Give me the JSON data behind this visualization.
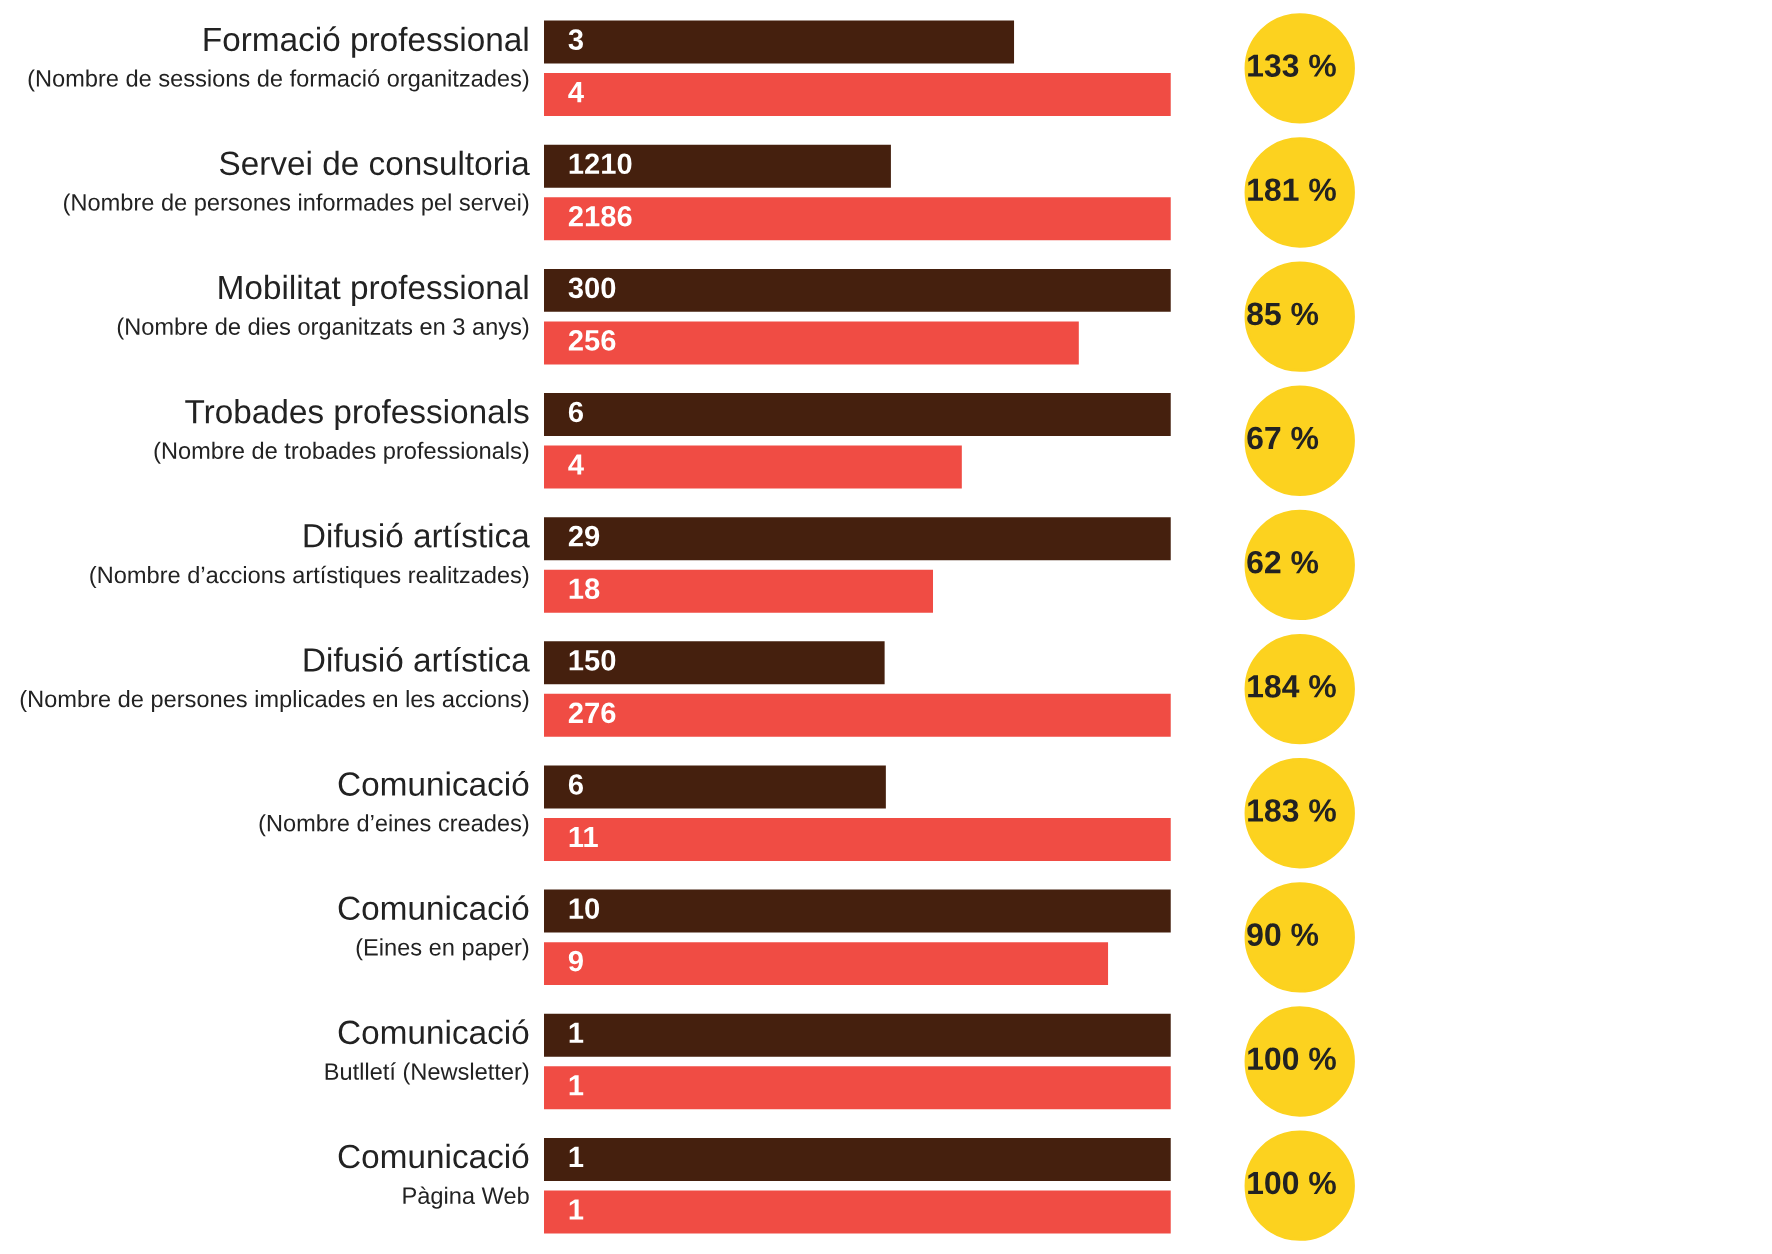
{
  "chart_data": [
    {
      "type": "bar",
      "orientation": "horizontal",
      "categories": [
        "Formació professional\n(Nombre de sessions de formació organitzades)"
      ],
      "series": [
        {
          "color": "#45200e",
          "values": [
            3
          ]
        },
        {
          "color": "#f04c44",
          "values": [
            4
          ]
        }
      ],
      "tick_labels": false,
      "data_labels": true,
      "annotations": [
        "133 %"
      ]
    },
    {
      "type": "bar",
      "orientation": "horizontal",
      "categories": [
        "Servei de consultoria\n(Nombre de persones informades pel servei)"
      ],
      "series": [
        {
          "color": "#45200e",
          "values": [
            1210
          ]
        },
        {
          "color": "#f04c44",
          "values": [
            2186
          ]
        }
      ],
      "tick_labels": false,
      "data_labels": true,
      "annotations": [
        "181 %"
      ]
    },
    {
      "type": "bar",
      "orientation": "horizontal",
      "categories": [
        "Mobilitat professional\n(Nombre de dies organitzats en 3 anys)"
      ],
      "series": [
        {
          "color": "#45200e",
          "values": [
            300
          ]
        },
        {
          "color": "#f04c44",
          "values": [
            256
          ]
        }
      ],
      "tick_labels": false,
      "data_labels": true,
      "annotations": [
        "85 %"
      ]
    },
    {
      "type": "bar",
      "orientation": "horizontal",
      "categories": [
        "Trobades professionals\n(Nombre de trobades professionals)"
      ],
      "series": [
        {
          "color": "#45200e",
          "values": [
            6
          ]
        },
        {
          "color": "#f04c44",
          "values": [
            4
          ]
        }
      ],
      "tick_labels": false,
      "data_labels": true,
      "annotations": [
        "67 %"
      ]
    },
    {
      "type": "bar",
      "orientation": "horizontal",
      "categories": [
        "Difusió artística\n(Nombre d’accions artístiques realitzades)"
      ],
      "series": [
        {
          "color": "#45200e",
          "values": [
            29
          ]
        },
        {
          "color": "#f04c44",
          "values": [
            18
          ]
        }
      ],
      "tick_labels": false,
      "data_labels": true,
      "annotations": [
        "62 %"
      ]
    },
    {
      "type": "bar",
      "orientation": "horizontal",
      "categories": [
        "Difusió artística\n(Nombre de persones implicades en les accions)"
      ],
      "series": [
        {
          "color": "#45200e",
          "values": [
            150
          ]
        },
        {
          "color": "#f04c44",
          "values": [
            276
          ]
        }
      ],
      "tick_labels": false,
      "data_labels": true,
      "annotations": [
        "184 %"
      ]
    },
    {
      "type": "bar",
      "orientation": "horizontal",
      "categories": [
        "Comunicació\n(Nombre d’eines creades)"
      ],
      "series": [
        {
          "color": "#45200e",
          "values": [
            6
          ]
        },
        {
          "color": "#f04c44",
          "values": [
            11
          ]
        }
      ],
      "tick_labels": false,
      "data_labels": true,
      "annotations": [
        "183 %"
      ]
    },
    {
      "type": "bar",
      "orientation": "horizontal",
      "categories": [
        "Comunicació\n(Eines en paper)"
      ],
      "series": [
        {
          "color": "#45200e",
          "values": [
            10
          ]
        },
        {
          "color": "#f04c44",
          "values": [
            9
          ]
        }
      ],
      "tick_labels": false,
      "data_labels": true,
      "annotations": [
        "90 %"
      ]
    },
    {
      "type": "bar",
      "orientation": "horizontal",
      "categories": [
        "Comunicació\nButlletí (Newsletter)"
      ],
      "series": [
        {
          "color": "#45200e",
          "values": [
            1
          ]
        },
        {
          "color": "#f04c44",
          "values": [
            1
          ]
        }
      ],
      "tick_labels": false,
      "data_labels": true,
      "annotations": [
        "100 %"
      ]
    },
    {
      "type": "bar",
      "orientation": "horizontal",
      "categories": [
        "Comunicació\nPàgina Web"
      ],
      "series": [
        {
          "color": "#45200e",
          "values": [
            1
          ]
        },
        {
          "color": "#f04c44",
          "values": [
            1
          ]
        }
      ],
      "tick_labels": false,
      "data_labels": true,
      "annotations": [
        "100 %"
      ]
    }
  ]
}
